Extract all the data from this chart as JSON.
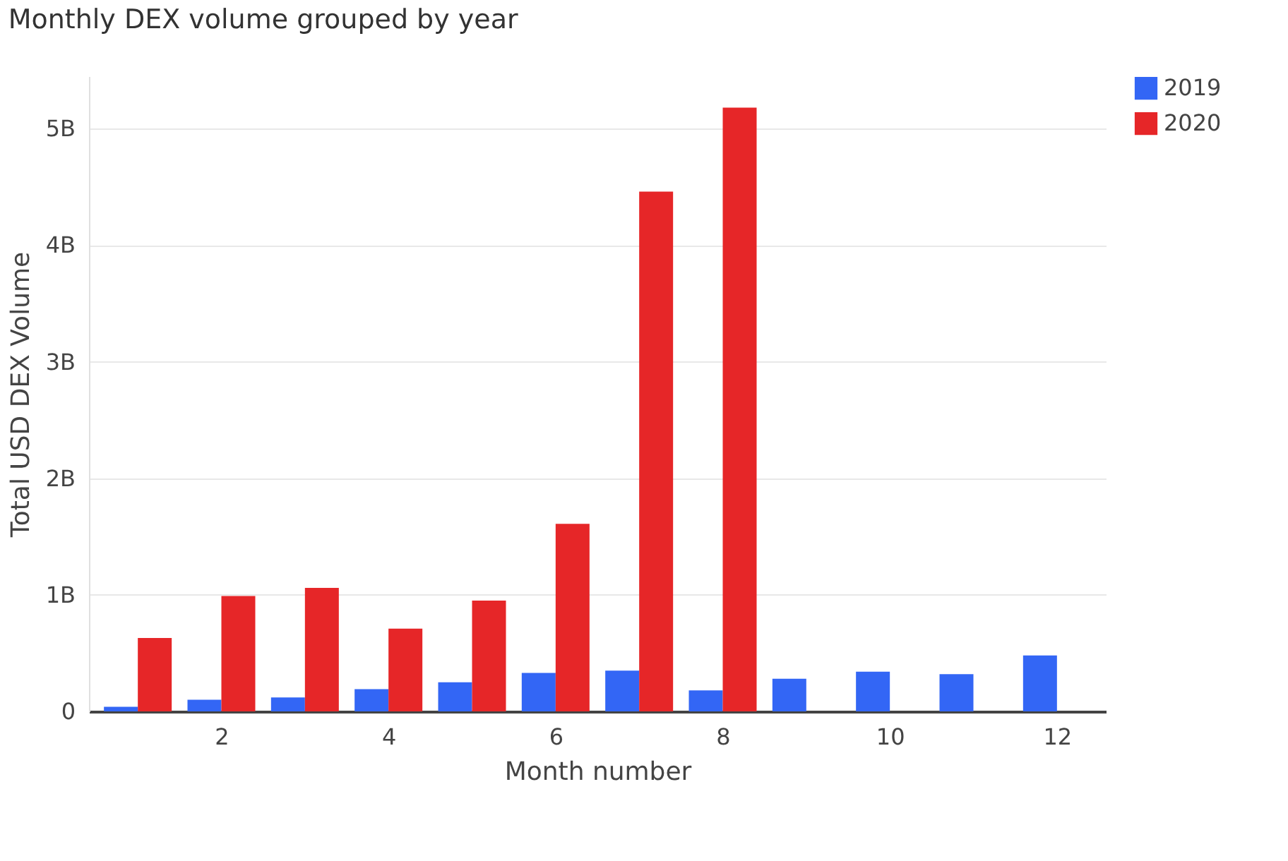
{
  "chart_data": {
    "type": "bar",
    "title": "Monthly DEX volume grouped by year",
    "xlabel": "Month number",
    "ylabel": "Total USD DEX Volume",
    "x": [
      1,
      2,
      3,
      4,
      5,
      6,
      7,
      8,
      9,
      10,
      11,
      12
    ],
    "series": [
      {
        "name": "2019",
        "color": "#3366f5",
        "values": [
          40000000,
          100000000,
          120000000,
          190000000,
          250000000,
          330000000,
          350000000,
          180000000,
          280000000,
          340000000,
          320000000,
          480000000
        ]
      },
      {
        "name": "2020",
        "color": "#e62628",
        "values": [
          630000000,
          990000000,
          1060000000,
          710000000,
          950000000,
          1610000000,
          4460000000,
          5180000000,
          null,
          null,
          null,
          null
        ]
      }
    ],
    "xlim": [
      0.5,
      12.5
    ],
    "xticks": [
      2,
      4,
      6,
      8,
      10,
      12
    ],
    "ylim": [
      0,
      5450000000
    ],
    "yticks": [
      0,
      {
        "value": 1000000000,
        "label": "1B"
      },
      {
        "value": 2000000000,
        "label": "2B"
      },
      {
        "value": 3000000000,
        "label": "3B"
      },
      {
        "value": 4000000000,
        "label": "4B"
      },
      {
        "value": 5000000000,
        "label": "5B"
      }
    ],
    "grid": "y",
    "legend": "top right"
  }
}
